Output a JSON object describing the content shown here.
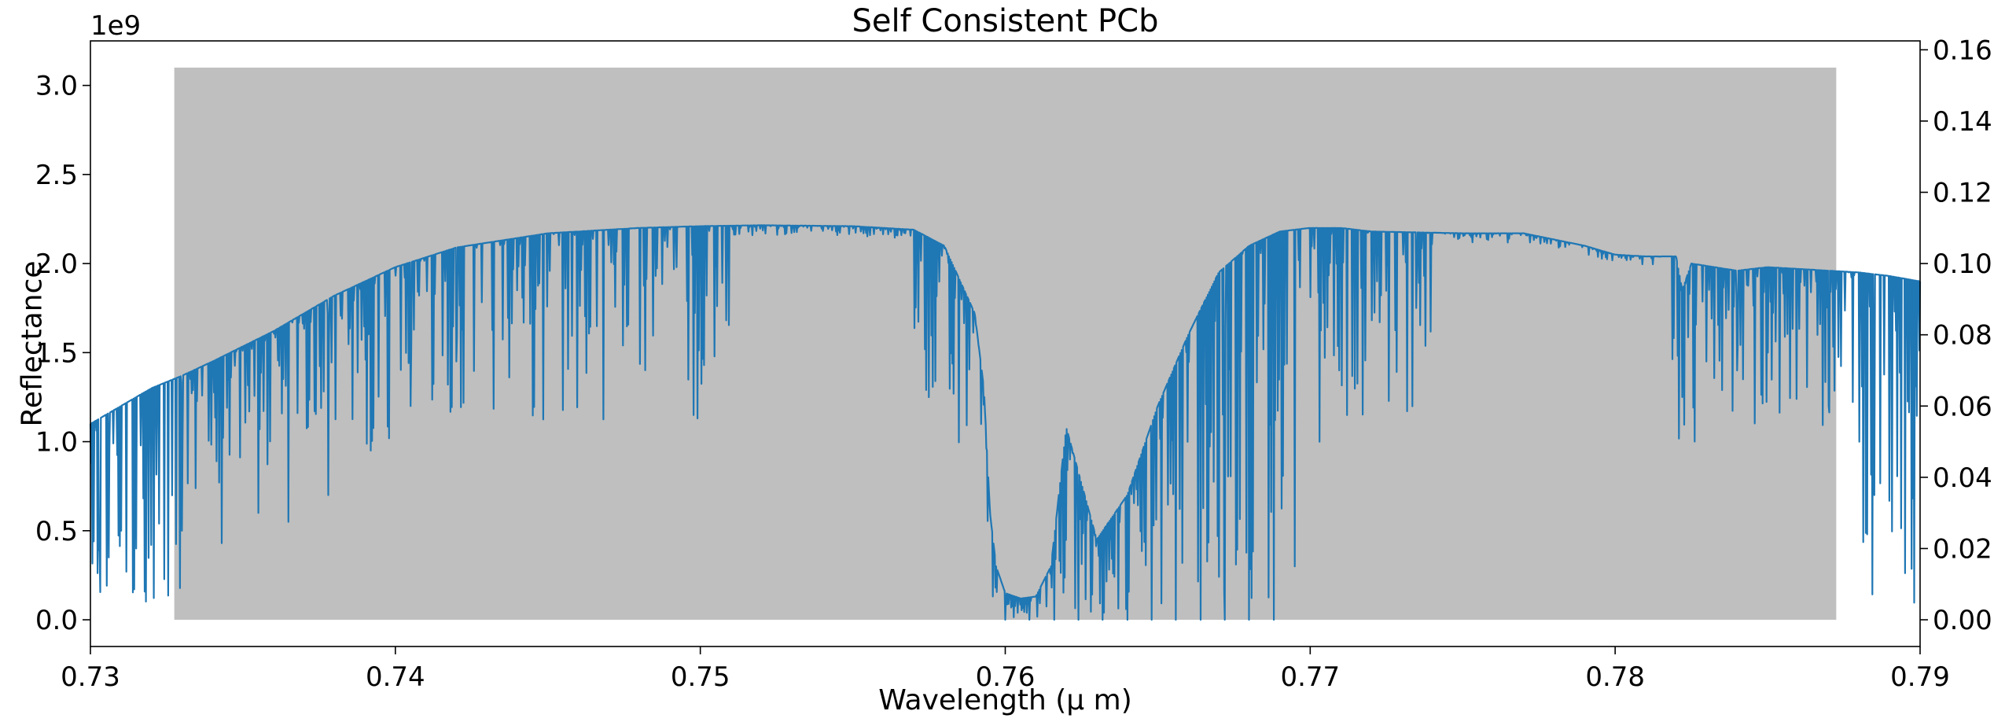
{
  "chart_data": {
    "type": "line",
    "title": "Self Consistent PCb",
    "xlabel": "Wavelength (μ m)",
    "ylabel": "Reflectance",
    "offset_text": "1e9",
    "xlim": [
      0.73,
      0.79
    ],
    "ylim": [
      -0.15,
      3.25
    ],
    "y2lim": [
      -0.0075,
      0.1625
    ],
    "x_ticks": [
      0.73,
      0.74,
      0.75,
      0.76,
      0.77,
      0.78,
      0.79
    ],
    "x_tick_labels": [
      "0.73",
      "0.74",
      "0.75",
      "0.76",
      "0.77",
      "0.78",
      "0.79"
    ],
    "y_ticks": [
      0.0,
      0.5,
      1.0,
      1.5,
      2.0,
      2.5,
      3.0
    ],
    "y_tick_labels": [
      "0.0",
      "0.5",
      "1.0",
      "1.5",
      "2.0",
      "2.5",
      "3.0"
    ],
    "y2_ticks": [
      0.0,
      0.02,
      0.04,
      0.06,
      0.08,
      0.1,
      0.12,
      0.14,
      0.16
    ],
    "y2_tick_labels": [
      "0.00",
      "0.02",
      "0.04",
      "0.06",
      "0.08",
      "0.10",
      "0.12",
      "0.14",
      "0.16"
    ],
    "grid": false,
    "shaded_band": {
      "x": [
        0.73275,
        0.78725
      ],
      "y": [
        0.0,
        3.1
      ],
      "color": "#bfbfbf"
    },
    "series": [
      {
        "color": "#1f77b4",
        "envelope": {
          "x": [
            0.73,
            0.731,
            0.732,
            0.733,
            0.734,
            0.736,
            0.738,
            0.74,
            0.742,
            0.745,
            0.748,
            0.75,
            0.752,
            0.755,
            0.757,
            0.758,
            0.759,
            0.7593,
            0.7595,
            0.7597,
            0.76,
            0.7605,
            0.761,
            0.7615,
            0.762,
            0.763,
            0.764,
            0.765,
            0.766,
            0.767,
            0.768,
            0.769,
            0.77,
            0.771,
            0.772,
            0.775,
            0.777,
            0.779,
            0.78,
            0.781,
            0.782,
            0.7822,
            0.7825,
            0.784,
            0.785,
            0.787,
            0.788,
            0.789,
            0.79
          ],
          "y": [
            1.1,
            1.2,
            1.3,
            1.37,
            1.45,
            1.62,
            1.82,
            1.98,
            2.09,
            2.17,
            2.2,
            2.21,
            2.215,
            2.21,
            2.19,
            2.1,
            1.72,
            1.3,
            0.6,
            0.3,
            0.15,
            0.12,
            0.13,
            0.3,
            1.08,
            0.45,
            0.7,
            1.2,
            1.6,
            1.95,
            2.1,
            2.18,
            2.2,
            2.2,
            2.18,
            2.17,
            2.17,
            2.1,
            2.05,
            2.04,
            2.04,
            1.85,
            2.0,
            1.96,
            1.98,
            1.96,
            1.95,
            1.93,
            1.9
          ]
        },
        "absorption_lines": [
          {
            "x": 0.7303,
            "y": 0.4
          },
          {
            "x": 0.7306,
            "y": 0.35
          },
          {
            "x": 0.731,
            "y": 0.5
          },
          {
            "x": 0.7315,
            "y": 0.4
          },
          {
            "x": 0.732,
            "y": 0.42
          },
          {
            "x": 0.733,
            "y": 0.5
          },
          {
            "x": 0.7343,
            "y": 0.43
          },
          {
            "x": 0.7355,
            "y": 0.6
          },
          {
            "x": 0.7365,
            "y": 0.55
          },
          {
            "x": 0.7378,
            "y": 0.7
          },
          {
            "x": 0.7392,
            "y": 0.95
          },
          {
            "x": 0.7405,
            "y": 1.2
          },
          {
            "x": 0.742,
            "y": 1.45
          },
          {
            "x": 0.744,
            "y": 1.85
          },
          {
            "x": 0.746,
            "y": 2.0
          },
          {
            "x": 0.76,
            "y": 0.0
          },
          {
            "x": 0.7608,
            "y": 0.0
          },
          {
            "x": 0.7616,
            "y": 0.0
          },
          {
            "x": 0.7624,
            "y": 0.0
          },
          {
            "x": 0.7632,
            "y": 0.0
          },
          {
            "x": 0.764,
            "y": 0.0
          },
          {
            "x": 0.7648,
            "y": 0.0
          },
          {
            "x": 0.7656,
            "y": 0.0
          },
          {
            "x": 0.7664,
            "y": 0.0
          },
          {
            "x": 0.7672,
            "y": 0.0
          },
          {
            "x": 0.768,
            "y": 0.0
          },
          {
            "x": 0.7688,
            "y": 0.0
          },
          {
            "x": 0.7695,
            "y": 0.3
          },
          {
            "x": 0.7703,
            "y": 1.0
          },
          {
            "x": 0.7712,
            "y": 1.6
          },
          {
            "x": 0.7722,
            "y": 1.9
          },
          {
            "x": 0.7735,
            "y": 2.0
          },
          {
            "x": 0.7822,
            "y": 1.25
          },
          {
            "x": 0.783,
            "y": 1.45
          },
          {
            "x": 0.784,
            "y": 1.4
          },
          {
            "x": 0.785,
            "y": 1.5
          },
          {
            "x": 0.787,
            "y": 1.2
          },
          {
            "x": 0.788,
            "y": 1.0
          },
          {
            "x": 0.7885,
            "y": 0.7
          },
          {
            "x": 0.7895,
            "y": 0.6
          }
        ]
      }
    ]
  }
}
